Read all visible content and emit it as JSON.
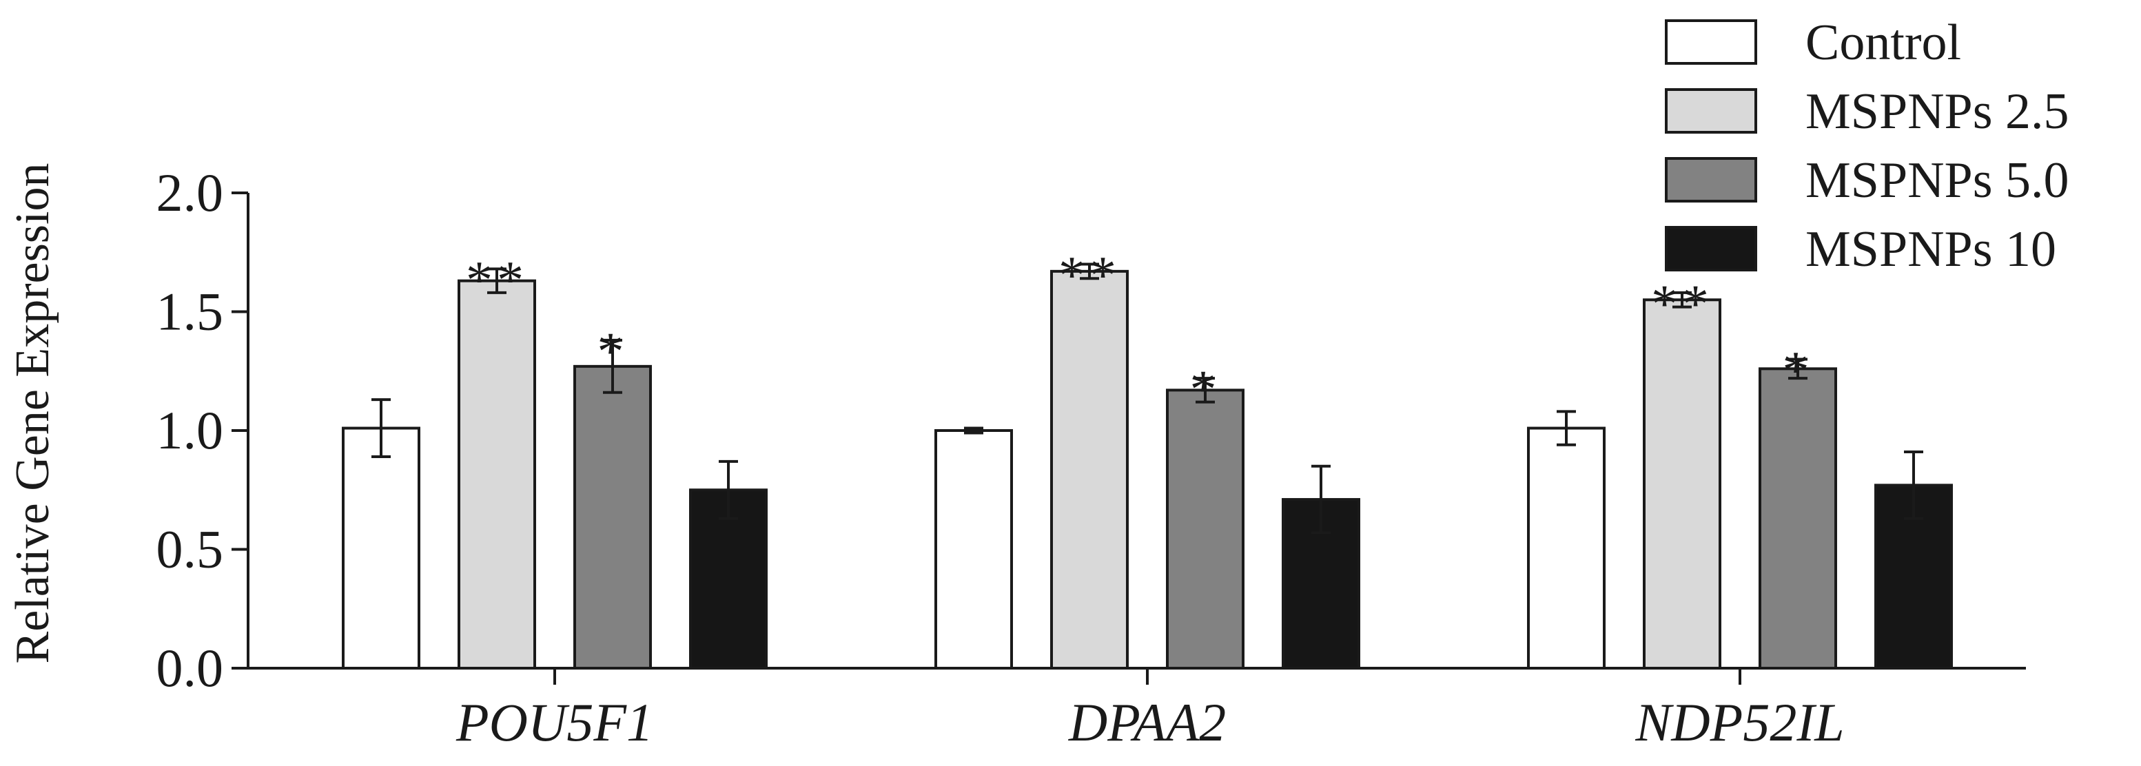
{
  "chart_data": {
    "type": "bar",
    "title": "",
    "xlabel": "",
    "ylabel": "Relative Gene Expression",
    "ylim": [
      0,
      2.0
    ],
    "yticks": [
      "0.0",
      "0.5",
      "1.0",
      "1.5",
      "2.0"
    ],
    "ytick_values": [
      0,
      0.5,
      1.0,
      1.5,
      2.0
    ],
    "categories": [
      "POU5F1",
      "DPAA2",
      "NDP52IL"
    ],
    "series": [
      {
        "name": "Control",
        "values": [
          1.01,
          1.0,
          1.01
        ],
        "errors": [
          0.12,
          0.01,
          0.07
        ],
        "significance": [
          "",
          "",
          ""
        ],
        "color": "#ffffff"
      },
      {
        "name": "MSPNPs 2.5",
        "values": [
          1.63,
          1.67,
          1.55
        ],
        "errors": [
          0.05,
          0.03,
          0.03
        ],
        "significance": [
          "**",
          "**",
          "**"
        ],
        "color": "#d9d9d9"
      },
      {
        "name": "MSPNPs 5.0",
        "values": [
          1.27,
          1.17,
          1.26
        ],
        "errors": [
          0.11,
          0.05,
          0.04
        ],
        "significance": [
          "*",
          "*",
          "*"
        ],
        "color": "#828282"
      },
      {
        "name": "MSPNPs 10",
        "values": [
          0.75,
          0.71,
          0.77
        ],
        "errors": [
          0.12,
          0.14,
          0.14
        ],
        "significance": [
          "",
          "",
          ""
        ],
        "color": "#161616"
      }
    ],
    "grid": false,
    "legend_position": "top-right"
  }
}
